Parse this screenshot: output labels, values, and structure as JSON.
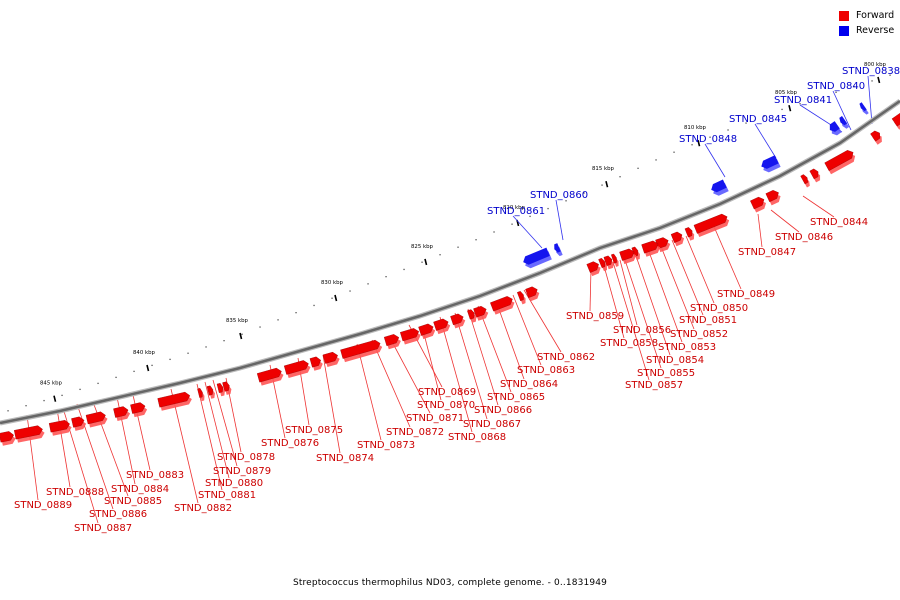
{
  "caption": "Streptococcus thermophilus ND03, complete genome. - 0..1831949",
  "legend": [
    {
      "label": "Forward",
      "color": "#ee0000"
    },
    {
      "label": "Reverse",
      "color": "#0000ee"
    }
  ],
  "colors": {
    "forward": "#ee0000",
    "forward_face": "#ff5555",
    "reverse": "#1515ee",
    "reverse_face": "#5a5aff",
    "backbone": "#666666"
  },
  "ticks": [
    "800 kbp",
    "805 kbp",
    "810 kbp",
    "815 kbp",
    "820 kbp",
    "825 kbp",
    "830 kbp",
    "835 kbp",
    "840 kbp",
    "845 kbp"
  ],
  "forward_labels": [
    "STND_0844",
    "STND_0846",
    "STND_0847",
    "STND_0849",
    "STND_0850",
    "STND_0851",
    "STND_0852",
    "STND_0853",
    "STND_0854",
    "STND_0855",
    "STND_0856",
    "STND_0857",
    "STND_0858",
    "STND_0859",
    "STND_0862",
    "STND_0863",
    "STND_0864",
    "STND_0865",
    "STND_0866",
    "STND_0867",
    "STND_0868",
    "STND_0869",
    "STND_0870",
    "STND_0871",
    "STND_0872",
    "STND_0873",
    "STND_0874",
    "STND_0875",
    "STND_0876",
    "STND_0878",
    "STND_0879",
    "STND_0880",
    "STND_0881",
    "STND_0882",
    "STND_0883",
    "STND_0884",
    "STND_0885",
    "STND_0886",
    "STND_0887",
    "STND_0888",
    "STND_0889"
  ],
  "reverse_labels": [
    "STND_0838",
    "STND_0840",
    "STND_0841",
    "STND_0845",
    "STND_0848",
    "STND_0860",
    "STND_0861"
  ]
}
